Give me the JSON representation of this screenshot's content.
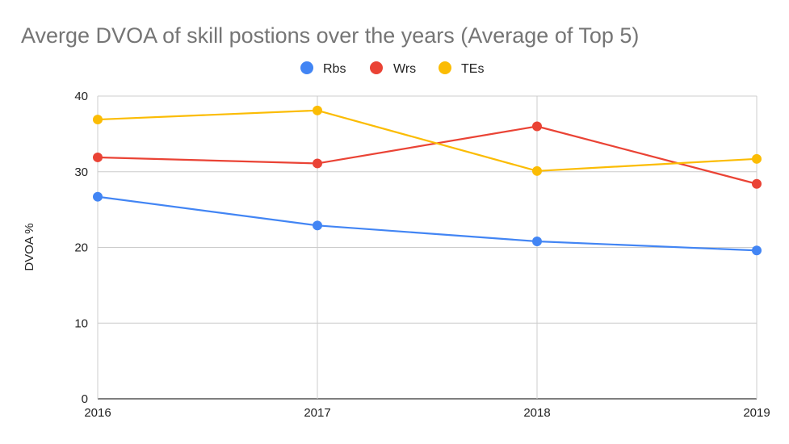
{
  "chart_data": {
    "type": "line",
    "title": "Averge DVOA of skill postions over the years (Average of Top 5)",
    "xlabel": "",
    "ylabel": "DVOA %",
    "categories": [
      "2016",
      "2017",
      "2018",
      "2019"
    ],
    "ylim": [
      0,
      40
    ],
    "yticks": [
      "0",
      "10",
      "20",
      "30",
      "40"
    ],
    "grid": true,
    "legend_position": "top",
    "series": [
      {
        "name": "Rbs",
        "color": "#4285F4",
        "values": [
          26.7,
          22.9,
          20.8,
          19.6
        ]
      },
      {
        "name": "Wrs",
        "color": "#EA4335",
        "values": [
          31.9,
          31.1,
          36.0,
          28.4
        ]
      },
      {
        "name": "TEs",
        "color": "#FBBC04",
        "values": [
          36.9,
          38.1,
          30.1,
          31.7
        ]
      }
    ]
  }
}
